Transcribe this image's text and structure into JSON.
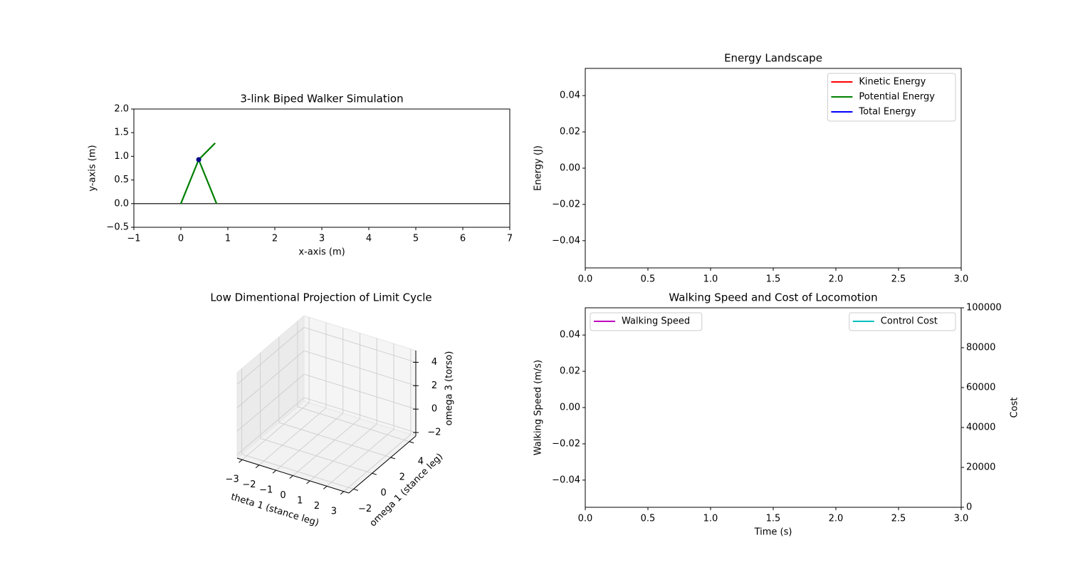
{
  "chart_data": [
    {
      "type": "line",
      "title": "3-link Biped Walker Simulation",
      "xlabel": "x-axis (m)",
      "ylabel": "y-axis (m)",
      "xlim": [
        -1,
        7
      ],
      "xticks": [
        {
          "value": -1,
          "label": "−1"
        },
        0,
        1,
        2,
        3,
        4,
        5,
        6,
        7
      ],
      "ylim": [
        -0.5,
        2
      ],
      "yticks": [
        {
          "value": -0.5,
          "label": "−0.5"
        },
        {
          "value": 0,
          "label": "0.0"
        },
        0.5,
        {
          "value": 1,
          "label": "1.0"
        },
        1.5,
        {
          "value": 2,
          "label": "2.0"
        }
      ],
      "series": [
        {
          "color": "#000000",
          "x": [
            -1,
            7
          ],
          "values": [
            0,
            0
          ]
        },
        {
          "color": "#008000",
          "x": [
            0,
            0.38
          ],
          "values": [
            0,
            0.93
          ]
        },
        {
          "color": "#008000",
          "x": [
            0.38,
            0.76
          ],
          "values": [
            0.93,
            0
          ]
        },
        {
          "color": "#008000",
          "x": [
            0.38,
            0.73
          ],
          "values": [
            0.93,
            1.28
          ]
        },
        {
          "color": "#00008b",
          "kind": "scatter",
          "x": [
            0.38
          ],
          "values": [
            0.93
          ]
        }
      ]
    },
    {
      "type": "line",
      "title": "Energy Landscape",
      "ylabel": "Energy (J)",
      "xlim": [
        0,
        3
      ],
      "xticks": [
        {
          "value": 0,
          "label": "0.0"
        },
        0.5,
        {
          "value": 1,
          "label": "1.0"
        },
        1.5,
        {
          "value": 2,
          "label": "2.0"
        },
        2.5,
        {
          "value": 3,
          "label": "3.0"
        }
      ],
      "ylim": [
        -0.055,
        0.055
      ],
      "yticks": [
        {
          "value": -0.04,
          "label": "−0.04"
        },
        {
          "value": -0.02,
          "label": "−0.02"
        },
        {
          "value": 0,
          "label": "0.00"
        },
        0.02,
        0.04
      ],
      "legend": "upper right",
      "series": [
        {
          "name": "Kinetic Energy",
          "color": "#ff0000",
          "x": [],
          "values": []
        },
        {
          "name": "Potential Energy",
          "color": "#008000",
          "x": [],
          "values": []
        },
        {
          "name": "Total Energy",
          "color": "#0000ff",
          "x": [],
          "values": []
        }
      ]
    },
    {
      "type": "scatter3d",
      "title": "Low Dimentional Projection of Limit Cycle",
      "xlabel": "theta 1 (stance leg)",
      "ylabel": "omega 1 (stance leg)",
      "zlabel": "omega 3 (torso)",
      "xlim": [
        -3.3,
        3.3
      ],
      "xticks": [
        {
          "value": -3,
          "label": "−3"
        },
        {
          "value": -2,
          "label": "−2"
        },
        {
          "value": -1,
          "label": "−1"
        },
        0,
        1,
        2,
        3
      ],
      "ylim": [
        -2.5,
        4.7
      ],
      "yticks": [
        {
          "value": -2,
          "label": "−2"
        },
        0,
        2,
        4
      ],
      "zlim": [
        -2.3,
        5
      ],
      "zticks": [
        {
          "value": -2,
          "label": "−2"
        },
        0,
        2,
        4
      ],
      "grid": true
    },
    {
      "type": "line",
      "title": "Walking Speed and Cost of Locomotion",
      "xlabel": "Time (s)",
      "ylabel": "Walking Speed (m/s)",
      "y2label": "Cost",
      "xlim": [
        0,
        3
      ],
      "xticks": [
        {
          "value": 0,
          "label": "0.0"
        },
        0.5,
        {
          "value": 1,
          "label": "1.0"
        },
        1.5,
        {
          "value": 2,
          "label": "2.0"
        },
        2.5,
        {
          "value": 3,
          "label": "3.0"
        }
      ],
      "ylim": [
        -0.055,
        0.055
      ],
      "yticks": [
        {
          "value": -0.04,
          "label": "−0.04"
        },
        {
          "value": -0.02,
          "label": "−0.02"
        },
        {
          "value": 0,
          "label": "0.00"
        },
        0.02,
        0.04
      ],
      "y2lim": [
        0,
        100000
      ],
      "y2ticks": [
        0,
        20000,
        40000,
        60000,
        80000,
        100000
      ],
      "legend": "upper left",
      "legend2": "upper right",
      "series": [
        {
          "name": "Walking Speed",
          "color": "#bf00bf",
          "x": [],
          "values": []
        },
        {
          "name": "Control Cost",
          "color": "#00bfbf",
          "axis": "y2",
          "x": [],
          "values": []
        }
      ]
    }
  ]
}
